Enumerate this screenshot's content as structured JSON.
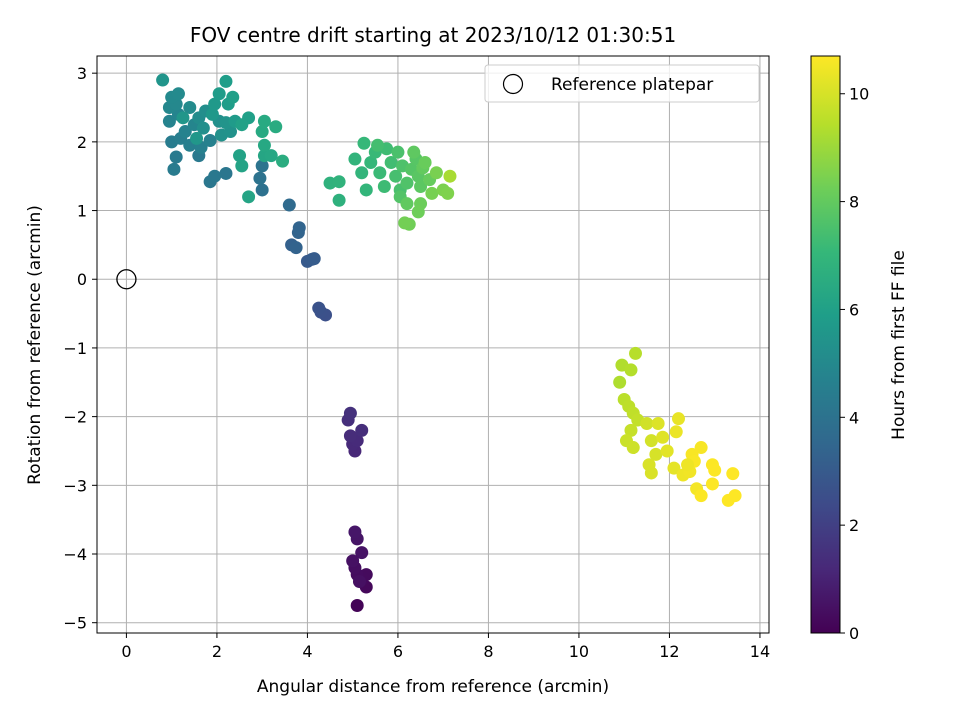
{
  "chart_data": {
    "type": "scatter",
    "title": "FOV centre drift starting at 2023/10/12 01:30:51",
    "xlabel": "Angular distance from reference (arcmin)",
    "ylabel": "Rotation from reference (arcmin)",
    "xlim": [
      -0.65,
      14.2
    ],
    "ylim": [
      -5.15,
      3.25
    ],
    "xticks": [
      0,
      2,
      4,
      6,
      8,
      10,
      12,
      14
    ],
    "yticks": [
      3,
      2,
      1,
      0,
      -1,
      -2,
      -3,
      -4,
      -5
    ],
    "ytick_labels": [
      "3",
      "2",
      "1",
      "0",
      "−1",
      "−2",
      "−3",
      "−4",
      "−5"
    ],
    "grid": true,
    "legend": {
      "placement": "top-right",
      "entries": [
        "Reference platepar"
      ]
    },
    "reference_point": {
      "x": 0,
      "y": 0,
      "label": "Reference platepar",
      "marker": "hollow-circle"
    },
    "colorbar": {
      "label": "Hours from first FF file",
      "colormap": "viridis",
      "range": [
        0,
        10.7
      ],
      "ticks": [
        0,
        2,
        4,
        6,
        8,
        10
      ]
    },
    "points": [
      {
        "x": 5.1,
        "y": -4.75,
        "h": 0.1
      },
      {
        "x": 5.3,
        "y": -4.48,
        "h": 0.2
      },
      {
        "x": 5.2,
        "y": -4.38,
        "h": 0.25
      },
      {
        "x": 5.3,
        "y": -4.3,
        "h": 0.3
      },
      {
        "x": 5.1,
        "y": -4.3,
        "h": 0.35
      },
      {
        "x": 5.05,
        "y": -4.2,
        "h": 0.4
      },
      {
        "x": 5.15,
        "y": -4.4,
        "h": 0.45
      },
      {
        "x": 5.0,
        "y": -4.1,
        "h": 0.5
      },
      {
        "x": 5.2,
        "y": -3.98,
        "h": 0.55
      },
      {
        "x": 5.1,
        "y": -3.78,
        "h": 0.6
      },
      {
        "x": 5.05,
        "y": -3.68,
        "h": 0.65
      },
      {
        "x": 5.05,
        "y": -2.5,
        "h": 1.2
      },
      {
        "x": 5.0,
        "y": -2.4,
        "h": 1.25
      },
      {
        "x": 5.1,
        "y": -2.35,
        "h": 1.3
      },
      {
        "x": 4.95,
        "y": -2.28,
        "h": 1.35
      },
      {
        "x": 5.2,
        "y": -2.2,
        "h": 1.4
      },
      {
        "x": 4.9,
        "y": -2.05,
        "h": 1.45
      },
      {
        "x": 4.95,
        "y": -1.95,
        "h": 1.5
      },
      {
        "x": 4.4,
        "y": -0.52,
        "h": 2.6
      },
      {
        "x": 4.3,
        "y": -0.48,
        "h": 2.65
      },
      {
        "x": 4.25,
        "y": -0.42,
        "h": 2.7
      },
      {
        "x": 4.0,
        "y": 0.26,
        "h": 3.0
      },
      {
        "x": 4.1,
        "y": 0.29,
        "h": 3.05
      },
      {
        "x": 4.15,
        "y": 0.3,
        "h": 3.1
      },
      {
        "x": 3.65,
        "y": 0.5,
        "h": 3.3
      },
      {
        "x": 3.75,
        "y": 0.46,
        "h": 3.35
      },
      {
        "x": 3.8,
        "y": 0.68,
        "h": 3.4
      },
      {
        "x": 3.82,
        "y": 0.75,
        "h": 3.45
      },
      {
        "x": 3.6,
        "y": 1.08,
        "h": 3.7
      },
      {
        "x": 3.0,
        "y": 1.3,
        "h": 4.0
      },
      {
        "x": 2.95,
        "y": 1.47,
        "h": 4.05
      },
      {
        "x": 3.0,
        "y": 1.65,
        "h": 4.1
      },
      {
        "x": 2.2,
        "y": 1.54,
        "h": 4.2
      },
      {
        "x": 1.85,
        "y": 1.42,
        "h": 4.25
      },
      {
        "x": 1.95,
        "y": 1.5,
        "h": 4.3
      },
      {
        "x": 1.6,
        "y": 1.8,
        "h": 4.35
      },
      {
        "x": 1.1,
        "y": 1.78,
        "h": 4.4
      },
      {
        "x": 1.05,
        "y": 1.6,
        "h": 4.45
      },
      {
        "x": 1.0,
        "y": 2.0,
        "h": 4.5
      },
      {
        "x": 1.2,
        "y": 2.05,
        "h": 4.55
      },
      {
        "x": 1.4,
        "y": 1.95,
        "h": 4.6
      },
      {
        "x": 1.65,
        "y": 1.92,
        "h": 4.65
      },
      {
        "x": 1.85,
        "y": 2.02,
        "h": 4.7
      },
      {
        "x": 1.3,
        "y": 2.15,
        "h": 4.75
      },
      {
        "x": 0.95,
        "y": 2.3,
        "h": 4.8
      },
      {
        "x": 1.15,
        "y": 2.4,
        "h": 4.85
      },
      {
        "x": 1.5,
        "y": 2.25,
        "h": 4.9
      },
      {
        "x": 0.95,
        "y": 2.5,
        "h": 4.95
      },
      {
        "x": 1.1,
        "y": 2.55,
        "h": 5.0
      },
      {
        "x": 1.0,
        "y": 2.65,
        "h": 5.05
      },
      {
        "x": 1.15,
        "y": 2.7,
        "h": 5.1
      },
      {
        "x": 1.4,
        "y": 2.5,
        "h": 5.15
      },
      {
        "x": 1.6,
        "y": 2.35,
        "h": 5.2
      },
      {
        "x": 1.75,
        "y": 2.45,
        "h": 5.25
      },
      {
        "x": 1.7,
        "y": 2.2,
        "h": 5.3
      },
      {
        "x": 2.05,
        "y": 2.3,
        "h": 5.35
      },
      {
        "x": 2.1,
        "y": 2.1,
        "h": 5.4
      },
      {
        "x": 2.3,
        "y": 2.15,
        "h": 5.45
      },
      {
        "x": 2.2,
        "y": 2.28,
        "h": 5.5
      },
      {
        "x": 0.8,
        "y": 2.9,
        "h": 5.55
      },
      {
        "x": 1.25,
        "y": 2.35,
        "h": 5.6
      },
      {
        "x": 1.55,
        "y": 2.05,
        "h": 5.65
      },
      {
        "x": 1.9,
        "y": 2.4,
        "h": 5.7
      },
      {
        "x": 1.95,
        "y": 2.55,
        "h": 5.75
      },
      {
        "x": 2.4,
        "y": 2.3,
        "h": 5.8
      },
      {
        "x": 2.05,
        "y": 2.7,
        "h": 5.85
      },
      {
        "x": 2.25,
        "y": 2.55,
        "h": 5.9
      },
      {
        "x": 2.2,
        "y": 2.88,
        "h": 5.95
      },
      {
        "x": 2.35,
        "y": 2.65,
        "h": 6.0
      },
      {
        "x": 2.7,
        "y": 2.35,
        "h": 6.05
      },
      {
        "x": 2.55,
        "y": 2.25,
        "h": 6.1
      },
      {
        "x": 2.5,
        "y": 1.8,
        "h": 6.15
      },
      {
        "x": 2.55,
        "y": 1.65,
        "h": 6.2
      },
      {
        "x": 2.7,
        "y": 1.2,
        "h": 6.25
      },
      {
        "x": 3.05,
        "y": 1.8,
        "h": 6.3
      },
      {
        "x": 3.2,
        "y": 1.8,
        "h": 6.35
      },
      {
        "x": 3.05,
        "y": 1.95,
        "h": 6.4
      },
      {
        "x": 3.0,
        "y": 2.15,
        "h": 6.45
      },
      {
        "x": 3.05,
        "y": 2.3,
        "h": 6.5
      },
      {
        "x": 3.3,
        "y": 2.22,
        "h": 6.55
      },
      {
        "x": 3.45,
        "y": 1.72,
        "h": 6.6
      },
      {
        "x": 4.7,
        "y": 1.15,
        "h": 6.8
      },
      {
        "x": 4.5,
        "y": 1.4,
        "h": 6.85
      },
      {
        "x": 4.7,
        "y": 1.42,
        "h": 6.9
      },
      {
        "x": 5.05,
        "y": 1.75,
        "h": 6.95
      },
      {
        "x": 5.2,
        "y": 1.55,
        "h": 7.0
      },
      {
        "x": 5.3,
        "y": 1.3,
        "h": 7.05
      },
      {
        "x": 5.4,
        "y": 1.7,
        "h": 7.1
      },
      {
        "x": 5.25,
        "y": 1.98,
        "h": 7.15
      },
      {
        "x": 5.5,
        "y": 1.85,
        "h": 7.2
      },
      {
        "x": 5.6,
        "y": 1.55,
        "h": 7.25
      },
      {
        "x": 5.7,
        "y": 1.35,
        "h": 7.3
      },
      {
        "x": 5.75,
        "y": 1.9,
        "h": 7.35
      },
      {
        "x": 5.85,
        "y": 1.7,
        "h": 7.4
      },
      {
        "x": 5.55,
        "y": 1.95,
        "h": 7.45
      },
      {
        "x": 5.95,
        "y": 1.5,
        "h": 7.5
      },
      {
        "x": 6.05,
        "y": 1.3,
        "h": 7.55
      },
      {
        "x": 6.0,
        "y": 1.85,
        "h": 7.6
      },
      {
        "x": 6.1,
        "y": 1.65,
        "h": 7.65
      },
      {
        "x": 6.2,
        "y": 1.4,
        "h": 7.7
      },
      {
        "x": 6.05,
        "y": 1.2,
        "h": 7.75
      },
      {
        "x": 6.3,
        "y": 1.6,
        "h": 7.8
      },
      {
        "x": 6.4,
        "y": 1.75,
        "h": 7.85
      },
      {
        "x": 6.45,
        "y": 1.5,
        "h": 7.9
      },
      {
        "x": 6.5,
        "y": 1.35,
        "h": 7.95
      },
      {
        "x": 6.35,
        "y": 1.85,
        "h": 8.0
      },
      {
        "x": 6.2,
        "y": 1.1,
        "h": 8.05
      },
      {
        "x": 6.55,
        "y": 1.62,
        "h": 8.1
      },
      {
        "x": 6.7,
        "y": 1.45,
        "h": 8.15
      },
      {
        "x": 6.6,
        "y": 1.7,
        "h": 8.2
      },
      {
        "x": 6.5,
        "y": 1.1,
        "h": 8.25
      },
      {
        "x": 6.45,
        "y": 0.98,
        "h": 8.3
      },
      {
        "x": 6.25,
        "y": 0.8,
        "h": 8.35
      },
      {
        "x": 6.15,
        "y": 0.82,
        "h": 8.4
      },
      {
        "x": 6.75,
        "y": 1.25,
        "h": 8.45
      },
      {
        "x": 6.85,
        "y": 1.55,
        "h": 8.5
      },
      {
        "x": 7.0,
        "y": 1.3,
        "h": 8.55
      },
      {
        "x": 7.1,
        "y": 1.25,
        "h": 8.6
      },
      {
        "x": 7.15,
        "y": 1.5,
        "h": 9.3
      },
      {
        "x": 10.9,
        "y": -1.5,
        "h": 9.4
      },
      {
        "x": 10.95,
        "y": -1.25,
        "h": 9.45
      },
      {
        "x": 11.15,
        "y": -1.32,
        "h": 9.5
      },
      {
        "x": 11.25,
        "y": -1.08,
        "h": 9.55
      },
      {
        "x": 11.0,
        "y": -1.75,
        "h": 9.6
      },
      {
        "x": 11.1,
        "y": -1.85,
        "h": 9.65
      },
      {
        "x": 11.2,
        "y": -1.95,
        "h": 9.7
      },
      {
        "x": 11.3,
        "y": -2.05,
        "h": 9.75
      },
      {
        "x": 11.15,
        "y": -2.2,
        "h": 9.8
      },
      {
        "x": 11.05,
        "y": -2.35,
        "h": 9.85
      },
      {
        "x": 11.2,
        "y": -2.45,
        "h": 9.9
      },
      {
        "x": 11.5,
        "y": -2.1,
        "h": 9.95
      },
      {
        "x": 11.6,
        "y": -2.35,
        "h": 10.0
      },
      {
        "x": 11.7,
        "y": -2.55,
        "h": 10.05
      },
      {
        "x": 11.55,
        "y": -2.7,
        "h": 10.1
      },
      {
        "x": 11.75,
        "y": -2.1,
        "h": 10.15
      },
      {
        "x": 11.85,
        "y": -2.3,
        "h": 10.2
      },
      {
        "x": 11.95,
        "y": -2.5,
        "h": 10.25
      },
      {
        "x": 12.1,
        "y": -2.75,
        "h": 10.3
      },
      {
        "x": 12.2,
        "y": -2.03,
        "h": 10.35
      },
      {
        "x": 12.15,
        "y": -2.22,
        "h": 10.4
      },
      {
        "x": 12.3,
        "y": -2.85,
        "h": 10.45
      },
      {
        "x": 12.45,
        "y": -2.8,
        "h": 10.5
      },
      {
        "x": 12.6,
        "y": -3.05,
        "h": 10.55
      },
      {
        "x": 12.7,
        "y": -2.45,
        "h": 10.6
      },
      {
        "x": 12.5,
        "y": -2.55,
        "h": 10.62
      },
      {
        "x": 12.55,
        "y": -2.65,
        "h": 10.64
      },
      {
        "x": 12.7,
        "y": -3.15,
        "h": 10.66
      },
      {
        "x": 12.95,
        "y": -2.7,
        "h": 10.67
      },
      {
        "x": 13.0,
        "y": -2.78,
        "h": 10.68
      },
      {
        "x": 12.95,
        "y": -2.98,
        "h": 10.69
      },
      {
        "x": 13.3,
        "y": -3.22,
        "h": 10.7
      },
      {
        "x": 13.45,
        "y": -3.15,
        "h": 10.7
      },
      {
        "x": 13.4,
        "y": -2.83,
        "h": 10.7
      },
      {
        "x": 11.6,
        "y": -2.82,
        "h": 10.1
      },
      {
        "x": 12.4,
        "y": -2.7,
        "h": 10.45
      }
    ]
  }
}
